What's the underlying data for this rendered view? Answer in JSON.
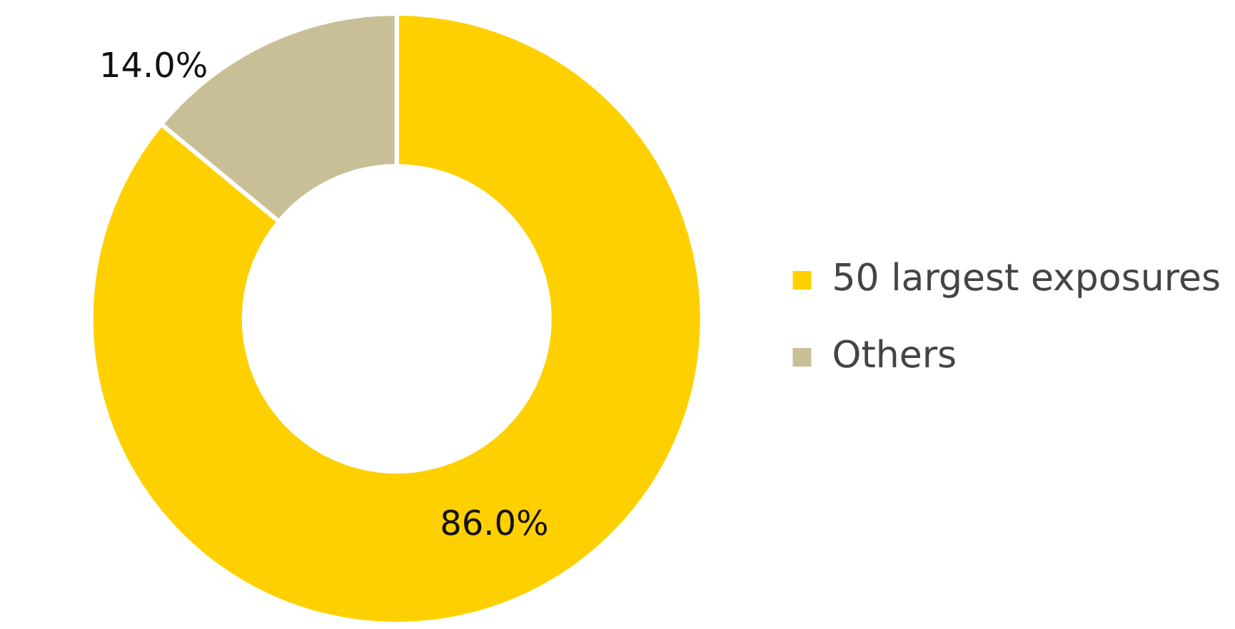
{
  "chart_data": {
    "type": "donut",
    "categories": [
      "50 largest exposures",
      "Others"
    ],
    "values": [
      86.0,
      14.0
    ],
    "colors": [
      "#ffd000",
      "#c8bf97"
    ],
    "value_labels": [
      "86.0%",
      "14.0%"
    ],
    "legend": "right"
  }
}
